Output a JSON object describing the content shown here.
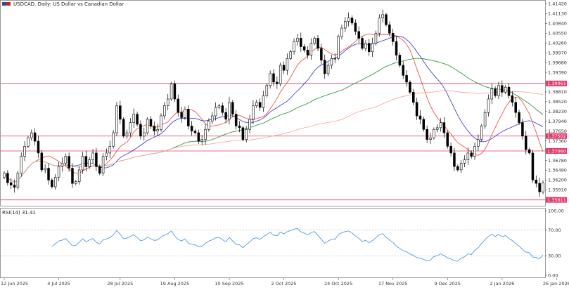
{
  "header": {
    "title": "USDCAD, Daily:  US Dollar vs Canadian Dollar"
  },
  "indicator": {
    "label": "RSI(14) 31.41",
    "scale_ticks": [
      "100.00",
      "70.00",
      "30.00",
      "0.00"
    ]
  },
  "colors": {
    "bull": "#ffffff",
    "bear": "#000000",
    "candle_outline": "#000000",
    "ma_fast": "#e8412f",
    "ma_mid": "#2a2fc9",
    "ma_slow": "#1f8a2a",
    "ma_slowest": "#f2a58c",
    "hline": "#e23a6b",
    "rsi": "#3b8fe0"
  },
  "chart_data": [
    {
      "type": "candlestick",
      "symbol": "USDCAD",
      "timeframe": "Daily",
      "title": "USDCAD, Daily:  US Dollar vs Canadian Dollar",
      "ylim": [
        1.355,
        1.4145
      ],
      "y_ticks": [
        "1.41420",
        "1.41130",
        "1.40840",
        "1.40550",
        "1.40260",
        "1.39970",
        "1.39680",
        "1.39390",
        "1.39100",
        "1.38810",
        "1.38520",
        "1.38230",
        "1.37940",
        "1.37650",
        "1.37360",
        "1.37070",
        "1.36780",
        "1.36490",
        "1.36200",
        "1.35910"
      ],
      "x_ticks": [
        "12 Jun 2025",
        "4 Jul 2025",
        "28 Jul 2025",
        "19 Aug 2025",
        "10 Sep 2025",
        "2 Oct 2025",
        "24 Oct 2025",
        "17 Nov 2025",
        "9 Dec 2025",
        "2 Jan 2026",
        "26 Jan 2026"
      ],
      "x_tick_index": [
        0,
        16,
        34,
        50,
        66,
        82,
        98,
        114,
        130,
        146,
        162
      ],
      "horizontal_levels": [
        {
          "value": 1.39061,
          "label": "1.39061"
        },
        {
          "value": 1.37502,
          "label": "1.37502"
        },
        {
          "value": 1.3706,
          "label": "1.37060"
        },
        {
          "value": 1.35611,
          "label": "1.35611"
        }
      ],
      "moving_averages": [
        {
          "color_key": "ma_fast",
          "period": 10
        },
        {
          "color_key": "ma_mid",
          "period": 20
        },
        {
          "color_key": "ma_slow",
          "period": 50
        },
        {
          "color_key": "ma_slowest",
          "period": 100
        }
      ],
      "close": [
        1.364,
        1.3612,
        1.3605,
        1.3598,
        1.364,
        1.369,
        1.372,
        1.3745,
        1.376,
        1.3735,
        1.37,
        1.365,
        1.3655,
        1.362,
        1.36,
        1.3628,
        1.366,
        1.367,
        1.369,
        1.3655,
        1.361,
        1.3615,
        1.365,
        1.369,
        1.366,
        1.368,
        1.37,
        1.366,
        1.364,
        1.369,
        1.37,
        1.372,
        1.376,
        1.384,
        1.38,
        1.375,
        1.376,
        1.379,
        1.3815,
        1.3785,
        1.375,
        1.376,
        1.38,
        1.378,
        1.3765,
        1.377,
        1.381,
        1.384,
        1.386,
        1.3905,
        1.386,
        1.382,
        1.3805,
        1.383,
        1.378,
        1.3765,
        1.376,
        1.3735,
        1.374,
        1.377,
        1.3795,
        1.381,
        1.3835,
        1.384,
        1.382,
        1.38,
        1.385,
        1.3815,
        1.378,
        1.3775,
        1.374,
        1.377,
        1.38,
        1.384,
        1.385,
        1.3835,
        1.387,
        1.39,
        1.3935,
        1.391,
        1.3905,
        1.396,
        1.3945,
        1.398,
        1.4,
        1.403,
        1.404,
        1.4015,
        1.4005,
        1.399,
        1.4025,
        1.404,
        1.401,
        1.3975,
        1.3935,
        1.396,
        1.398,
        1.398,
        1.4045,
        1.407,
        1.409,
        1.41,
        1.4085,
        1.406,
        1.404,
        1.401,
        1.4025,
        1.4,
        1.4025,
        1.4055,
        1.41,
        1.411,
        1.408,
        1.4055,
        1.403,
        1.399,
        1.396,
        1.393,
        1.391,
        1.388,
        1.385,
        1.381,
        1.38,
        1.377,
        1.374,
        1.3745,
        1.377,
        1.3775,
        1.379,
        1.376,
        1.372,
        1.37,
        1.366,
        1.365,
        1.367,
        1.368,
        1.37,
        1.369,
        1.372,
        1.374,
        1.378,
        1.382,
        1.386,
        1.389,
        1.387,
        1.39,
        1.388,
        1.3895,
        1.387,
        1.385,
        1.382,
        1.379,
        1.375,
        1.371,
        1.37,
        1.362,
        1.361,
        1.3585,
        1.3611
      ],
      "rsi": {
        "period": 14,
        "last": 31.41,
        "ylim": [
          0,
          100
        ],
        "levels": [
          70,
          30
        ]
      }
    }
  ]
}
